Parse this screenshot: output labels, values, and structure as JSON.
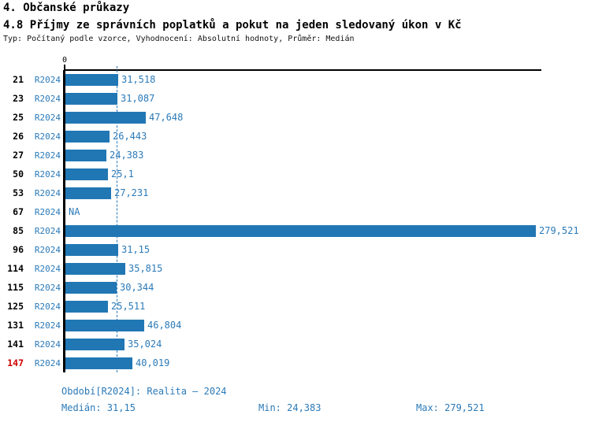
{
  "header": {
    "title": "4. Občanské průkazy",
    "subtitle": "4.8 Příjmy ze správních poplatků a pokut na jeden sledovaný úkon v Kč",
    "meta": "Typ: Počítaný podle vzorce, Vyhodnocení: Absolutní hodnoty, Průměr: Medián"
  },
  "colors": {
    "bar_blue": "#2177b4",
    "text_blue": "#2b7ab8",
    "highlight_red": "#cc0000",
    "axis_black": "#000000"
  },
  "chart_data": {
    "type": "bar",
    "orientation": "horizontal",
    "title": "4.8 Příjmy ze správních poplatků a pokut na jeden sledovaný úkon v Kč",
    "x_axis": {
      "origin_tick_label": "0",
      "max_value": 279.521,
      "grid": "median-dashed-line"
    },
    "median_value": 31.15,
    "legend_position": "none",
    "rows": [
      {
        "id": "21",
        "period": "R2024",
        "value": 31.518,
        "value_label": "31,518",
        "highlight": false
      },
      {
        "id": "23",
        "period": "R2024",
        "value": 31.087,
        "value_label": "31,087",
        "highlight": false
      },
      {
        "id": "25",
        "period": "R2024",
        "value": 47.648,
        "value_label": "47,648",
        "highlight": false
      },
      {
        "id": "26",
        "period": "R2024",
        "value": 26.443,
        "value_label": "26,443",
        "highlight": false
      },
      {
        "id": "27",
        "period": "R2024",
        "value": 24.383,
        "value_label": "24,383",
        "highlight": false
      },
      {
        "id": "50",
        "period": "R2024",
        "value": 25.1,
        "value_label": "25,1",
        "highlight": false
      },
      {
        "id": "53",
        "period": "R2024",
        "value": 27.231,
        "value_label": "27,231",
        "highlight": false
      },
      {
        "id": "67",
        "period": "R2024",
        "value": null,
        "value_label": "NA",
        "highlight": false
      },
      {
        "id": "85",
        "period": "R2024",
        "value": 279.521,
        "value_label": "279,521",
        "highlight": false
      },
      {
        "id": "96",
        "period": "R2024",
        "value": 31.15,
        "value_label": "31,15",
        "highlight": false
      },
      {
        "id": "114",
        "period": "R2024",
        "value": 35.815,
        "value_label": "35,815",
        "highlight": false
      },
      {
        "id": "115",
        "period": "R2024",
        "value": 30.344,
        "value_label": "30,344",
        "highlight": false
      },
      {
        "id": "125",
        "period": "R2024",
        "value": 25.511,
        "value_label": "25,511",
        "highlight": false
      },
      {
        "id": "131",
        "period": "R2024",
        "value": 46.804,
        "value_label": "46,804",
        "highlight": false
      },
      {
        "id": "141",
        "period": "R2024",
        "value": 35.024,
        "value_label": "35,024",
        "highlight": false
      },
      {
        "id": "147",
        "period": "R2024",
        "value": 40.019,
        "value_label": "40,019",
        "highlight": true
      }
    ],
    "footer": {
      "period": "Období[R2024]: Realita – 2024",
      "median": "Medián: 31,15",
      "min": "Min: 24,383",
      "max": "Max: 279,521"
    }
  }
}
